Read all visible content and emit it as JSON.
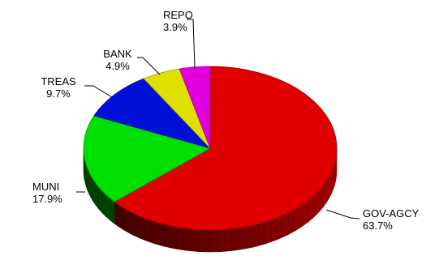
{
  "chart_data": {
    "type": "pie",
    "style": "3d",
    "legend": "none",
    "slices": [
      {
        "label": "GOV-AGCY",
        "percent_label": "63.7%",
        "value": 63.7,
        "color": "#e00000"
      },
      {
        "label": "MUNI",
        "percent_label": "17.9%",
        "value": 17.9,
        "color": "#00e000"
      },
      {
        "label": "TREAS",
        "percent_label": "9.7%",
        "value": 9.7,
        "color": "#0010d8"
      },
      {
        "label": "BANK",
        "percent_label": "4.9%",
        "value": 4.9,
        "color": "#e0e000"
      },
      {
        "label": "REPO",
        "percent_label": "3.9%",
        "value": 3.9,
        "color": "#e000e0"
      }
    ]
  }
}
